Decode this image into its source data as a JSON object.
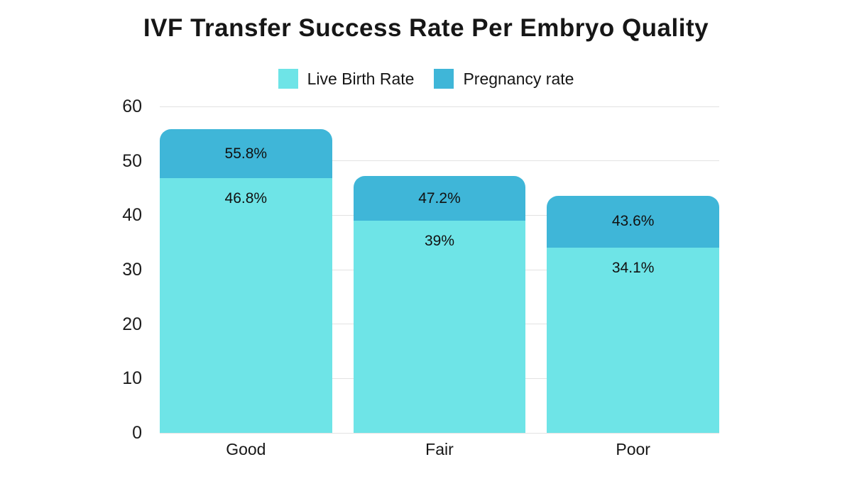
{
  "title": "IVF Transfer Success Rate Per Embryo Quality",
  "legend": [
    {
      "label": "Live Birth Rate",
      "color": "#6ee4e7"
    },
    {
      "label": "Pregnancy rate",
      "color": "#3fb6d8"
    }
  ],
  "chart_data": {
    "type": "bar",
    "subtype": "overlaid",
    "title": "IVF Transfer Success Rate Per Embryo Quality",
    "categories": [
      "Good",
      "Fair",
      "Poor"
    ],
    "series": [
      {
        "name": "Pregnancy rate",
        "color": "#3fb6d8",
        "values": [
          55.8,
          47.2,
          43.6
        ],
        "labels": [
          "55.8%",
          "47.2%",
          "43.6%"
        ]
      },
      {
        "name": "Live Birth Rate",
        "color": "#6ee4e7",
        "values": [
          46.8,
          39,
          34.1
        ],
        "labels": [
          "46.8%",
          "39%",
          "34.1%"
        ]
      }
    ],
    "xlabel": "",
    "ylabel": "",
    "ylim": [
      0,
      60
    ],
    "yticks": [
      0,
      10,
      20,
      30,
      40,
      50,
      60
    ],
    "grid": true,
    "legend_position": "top",
    "gridline_color": "#e2e2e2",
    "text_color": "#161616",
    "background": "#ffffff"
  }
}
